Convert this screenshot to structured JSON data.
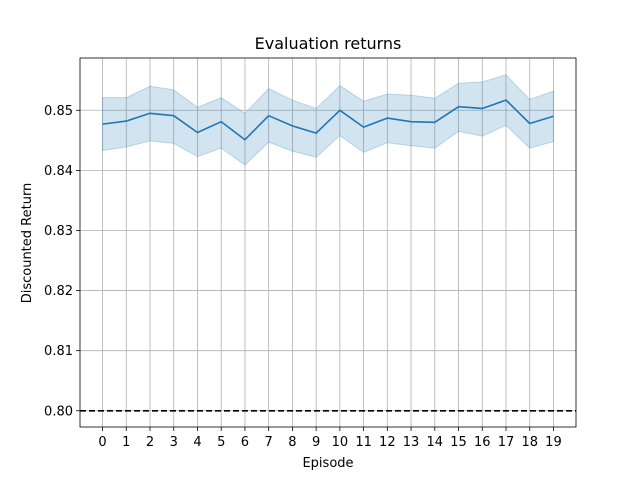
{
  "chart_data": {
    "type": "line",
    "title": "Evaluation returns",
    "xlabel": "Episode",
    "ylabel": "Discounted Return",
    "x": [
      0,
      1,
      2,
      3,
      4,
      5,
      6,
      7,
      8,
      9,
      10,
      11,
      12,
      13,
      14,
      15,
      16,
      17,
      18,
      19
    ],
    "xlim": [
      -0.95,
      19.95
    ],
    "ylim": [
      0.7973,
      0.8587
    ],
    "yticks": [
      0.8,
      0.81,
      0.82,
      0.83,
      0.84,
      0.85
    ],
    "ytick_labels": [
      "0.80",
      "0.81",
      "0.82",
      "0.83",
      "0.84",
      "0.85"
    ],
    "grid": true,
    "series": [
      {
        "type": "line",
        "color": "#1f77b4",
        "values": [
          0.8477,
          0.8482,
          0.8495,
          0.8491,
          0.8463,
          0.8481,
          0.8451,
          0.8491,
          0.8474,
          0.8462,
          0.85,
          0.8472,
          0.8487,
          0.8481,
          0.848,
          0.8506,
          0.8503,
          0.8517,
          0.8478,
          0.849
        ]
      },
      {
        "type": "band",
        "color": "#1f77b4",
        "opacity": 0.2,
        "upper": [
          0.8521,
          0.8521,
          0.854,
          0.8534,
          0.8505,
          0.8521,
          0.8495,
          0.8536,
          0.8517,
          0.8503,
          0.8541,
          0.8515,
          0.8527,
          0.8525,
          0.852,
          0.8545,
          0.8547,
          0.8559,
          0.8518,
          0.8532
        ],
        "lower": [
          0.8433,
          0.8439,
          0.8449,
          0.8445,
          0.8423,
          0.8437,
          0.8409,
          0.8447,
          0.8432,
          0.8422,
          0.8458,
          0.843,
          0.8446,
          0.8441,
          0.8437,
          0.8465,
          0.8457,
          0.8475,
          0.8437,
          0.8448
        ]
      },
      {
        "type": "hline",
        "value": 0.8,
        "color": "#000000",
        "style": "dashed"
      }
    ]
  }
}
